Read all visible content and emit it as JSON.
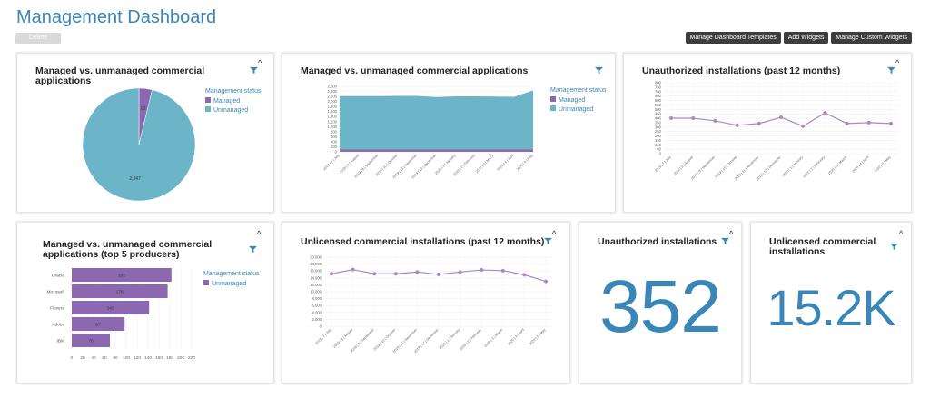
{
  "page": {
    "title": "Management Dashboard",
    "delete_label": "Delete"
  },
  "toolbar": {
    "manage_templates_label": "Manage Dashboard Templates",
    "add_widgets_label": "Add Widgets",
    "manage_custom_label": "Manage Custom Widgets"
  },
  "colors": {
    "managed": "#8b68b0",
    "unmanaged": "#6cb5c9",
    "line": "#a98ac9",
    "accent": "#3a86b8"
  },
  "widgets": {
    "w1": {
      "title": "Managed vs. unmanaged commercial applications",
      "legend_title": "Management status",
      "legend": [
        "Managed",
        "Unmanaged"
      ]
    },
    "w2": {
      "title": "Managed vs. unmanaged commercial applications",
      "legend_title": "Management status",
      "legend": [
        "Managed",
        "Unmanaged"
      ]
    },
    "w3": {
      "title": "Unauthorized installations (past 12 months)"
    },
    "w4": {
      "title": "Managed vs. unmanaged commercial applications (top 5 producers)",
      "legend_title": "Management status",
      "legend": [
        "Unmanaged"
      ]
    },
    "w5": {
      "title": "Unlicensed commercial installations (past 12 months)"
    },
    "w6": {
      "title": "Unauthorized installations",
      "value": "352"
    },
    "w7": {
      "title": "Unlicensed commercial installations",
      "value": "15.2K"
    }
  },
  "chart_data": [
    {
      "type": "pie",
      "title": "Managed vs. unmanaged commercial applications",
      "legend_title": "Management status",
      "legend_placement": "right",
      "categories": [
        "Managed",
        "Unmanaged"
      ],
      "values": [
        92,
        2347
      ],
      "data_labels": [
        "92",
        "2,347"
      ]
    },
    {
      "type": "area",
      "title": "Managed vs. unmanaged commercial applications",
      "legend_title": "Management status",
      "legend_placement": "right",
      "categories": [
        "2019 | 7 | July",
        "2019 | 8 | August",
        "2019 | 9 | September",
        "2019 | 10 | October",
        "2019 | 11 | November",
        "2019 | 12 | December",
        "2020 | 1 | January",
        "2020 | 2 | February",
        "2020 | 3 | March",
        "2020 | 4 | April",
        "2020 | 5 | May"
      ],
      "series": [
        {
          "name": "Managed",
          "values": [
            92,
            92,
            92,
            92,
            92,
            92,
            92,
            92,
            92,
            92,
            92
          ]
        },
        {
          "name": "Unmanaged",
          "values": [
            2120,
            2120,
            2120,
            2130,
            2130,
            2080,
            2110,
            2110,
            2100,
            2090,
            2350
          ]
        }
      ],
      "stacked": true,
      "ylim": [
        0,
        2600
      ],
      "yticks": [
        "0",
        "200",
        "400",
        "600",
        "800",
        "1,000",
        "1,200",
        "1,400",
        "1,600",
        "1,800",
        "2,000",
        "2,200",
        "2,400",
        "2,600"
      ],
      "grid": true
    },
    {
      "type": "line",
      "title": "Unauthorized installations (past 12 months)",
      "categories": [
        "2019 | 7 | July",
        "2019 | 8 | August",
        "2019 | 9 | September",
        "2019 | 10 | October",
        "2019 | 11 | November",
        "2019 | 12 | December",
        "2020 | 1 | January",
        "2020 | 2 | February",
        "2020 | 3 | March",
        "2020 | 4 | April",
        "2020 | 5 | May"
      ],
      "values": [
        400,
        400,
        370,
        320,
        340,
        410,
        310,
        460,
        340,
        350,
        340
      ],
      "ylim": [
        0,
        800
      ],
      "yticks": [
        "0",
        "50",
        "100",
        "150",
        "200",
        "250",
        "300",
        "350",
        "400",
        "450",
        "500",
        "550",
        "600",
        "650",
        "700",
        "750",
        "800"
      ],
      "grid": true
    },
    {
      "type": "bar",
      "orientation": "horizontal",
      "title": "Managed vs. unmanaged commercial applications (top 5 producers)",
      "legend_title": "Management status",
      "legend_placement": "right",
      "categories": [
        "Oracle",
        "Microsoft",
        "Flexera",
        "Adobe",
        "IBM"
      ],
      "series": [
        {
          "name": "Unmanaged",
          "values": [
            183,
            176,
            142,
            97,
            70
          ]
        }
      ],
      "data_labels": [
        "183",
        "176",
        "142",
        "97",
        "70"
      ],
      "xlim": [
        0,
        220
      ],
      "xticks": [
        "0",
        "20",
        "40",
        "60",
        "80",
        "100",
        "120",
        "140",
        "160",
        "180",
        "200",
        "220"
      ]
    },
    {
      "type": "line",
      "title": "Unlicensed commercial installations (past 12 months)",
      "categories": [
        "2019 | 7 | July",
        "2019 | 8 | August",
        "2019 | 9 | September",
        "2019 | 10 | October",
        "2019 | 11 | November",
        "2019 | 12 | December",
        "2020 | 1 | January",
        "2020 | 2 | February",
        "2020 | 3 | March",
        "2020 | 4 | April",
        "2020 | 5 | May"
      ],
      "values": [
        15200,
        16400,
        15200,
        15200,
        15700,
        15000,
        15700,
        16300,
        16100,
        14900,
        13000
      ],
      "ylim": [
        0,
        20000
      ],
      "yticks": [
        "0",
        "2,000",
        "4,000",
        "6,000",
        "8,000",
        "10,000",
        "12,000",
        "14,000",
        "16,000",
        "18,000",
        "20,000"
      ],
      "grid": true
    }
  ]
}
